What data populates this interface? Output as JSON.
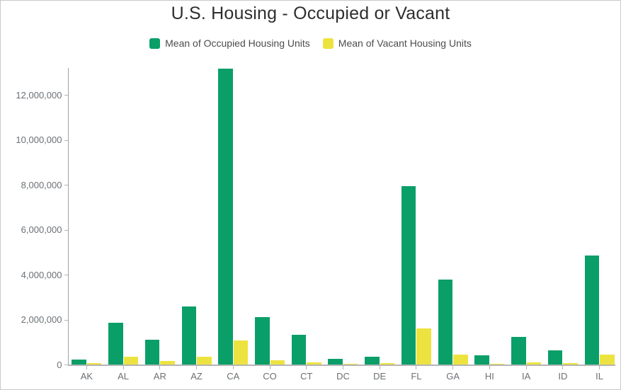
{
  "title": "U.S. Housing - Occupied or Vacant",
  "legend": {
    "items": [
      {
        "label": "Mean of Occupied Housing Units",
        "color": "#0a9f68"
      },
      {
        "label": "Mean of Vacant Housing Units",
        "color": "#ede340"
      }
    ]
  },
  "chart_data": {
    "type": "bar",
    "title": "U.S. Housing - Occupied or Vacant",
    "categories": [
      "AK",
      "AL",
      "AR",
      "AZ",
      "CA",
      "CO",
      "CT",
      "DC",
      "DE",
      "FL",
      "GA",
      "HI",
      "IA",
      "ID",
      "IL"
    ],
    "series": [
      {
        "name": "Mean of Occupied Housing Units",
        "color": "#0a9f68",
        "values": [
          250000,
          1870000,
          1130000,
          2610000,
          13180000,
          2120000,
          1350000,
          270000,
          360000,
          7940000,
          3810000,
          440000,
          1250000,
          640000,
          4870000
        ]
      },
      {
        "name": "Mean of Vacant Housing Units",
        "color": "#ede340",
        "values": [
          70000,
          350000,
          180000,
          370000,
          1080000,
          195000,
          110000,
          38000,
          90000,
          1620000,
          465000,
          57000,
          115000,
          63000,
          470000
        ]
      }
    ],
    "xlabel": "",
    "ylabel": "",
    "ylim": [
      0,
      13250000
    ],
    "y_ticks": [
      0,
      2000000,
      4000000,
      6000000,
      8000000,
      10000000,
      12000000
    ],
    "y_tick_labels": [
      "0",
      "2,000,000",
      "4,000,000",
      "6,000,000",
      "8,000,000",
      "10,000,000",
      "12,000,000"
    ],
    "grid": false,
    "legend_position": "top"
  },
  "colors": {
    "occupied": "#0a9f68",
    "vacant": "#ede340",
    "axis_line": "#a3a3a3",
    "baseline": "#b5b5b5",
    "tick": "#b5b5b5",
    "axis_label": "#6b7075",
    "title_text": "#2e2e2e",
    "legend_text": "#4c4c4c",
    "panel_border": "#c9c9c9"
  }
}
